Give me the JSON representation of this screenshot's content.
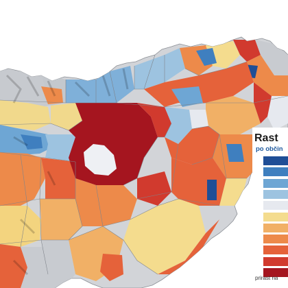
{
  "legend": {
    "title": "Rast",
    "subtitle": "po občin",
    "source": "prirast na",
    "swatches": [
      "#1f4e96",
      "#3f7fbf",
      "#6ea6d4",
      "#9dc3e0",
      "#e6e9ef",
      "#f4dc8e",
      "#f1b066",
      "#ed8a4a",
      "#e5623a",
      "#d13a2e",
      "#a5151f"
    ]
  },
  "colors": {
    "dark_red": "#a5151f",
    "red": "#d13a2e",
    "orange_red": "#e5623a",
    "orange": "#ed8a4a",
    "light_orange": "#f1b066",
    "yellow": "#f4dc8e",
    "white": "#e6e9ef",
    "light_blue": "#9dc3e0",
    "blue": "#6ea6d4",
    "mid_blue": "#3f7fbf",
    "dark_blue": "#1f4e96",
    "terrain_gray": "#c8cbd0",
    "border": "#8b8f95"
  }
}
